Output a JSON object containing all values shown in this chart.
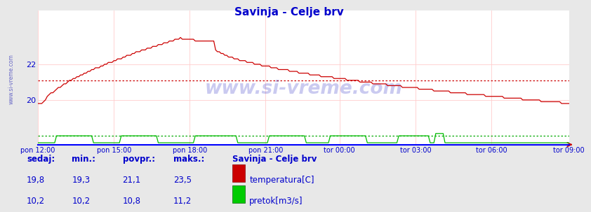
{
  "title": "Savinja - Celje brv",
  "bg_color": "#e8e8e8",
  "plot_bg_color": "#ffffff",
  "grid_color_h": "#ffcccc",
  "grid_color_v": "#ffcccc",
  "title_color": "#0000cc",
  "axis_label_color": "#0000cc",
  "watermark_text": "www.si-vreme.com",
  "watermark_color": "#4444cc",
  "watermark_alpha": 0.28,
  "temp_color": "#cc0000",
  "flow_color": "#00bb00",
  "avg_temp_color": "#cc0000",
  "avg_flow_color": "#00aa00",
  "temp_avg": 21.1,
  "flow_avg_scaled": 0.55,
  "ylim_min": 17.5,
  "ylim_max": 25.0,
  "yticks": [
    20,
    22
  ],
  "x_tick_labels": [
    "pon 12:00",
    "pon 15:00",
    "pon 18:00",
    "pon 21:00",
    "tor 00:00",
    "tor 03:00",
    "tor 06:00",
    "tor 09:00"
  ],
  "x_tick_fracs": [
    0.0,
    0.143,
    0.286,
    0.429,
    0.571,
    0.714,
    0.857,
    1.0
  ],
  "n_points": 288,
  "sidebar_text": "www.si-vreme.com",
  "legend_title": "Savinja - Celje brv",
  "legend_temp_label": "temperatura[C]",
  "legend_flow_label": "pretok[m3/s]",
  "stats_headers": [
    "sedaj:",
    "min.:",
    "povpr.:",
    "maks.:"
  ],
  "stats_temp": [
    "19,8",
    "19,3",
    "21,1",
    "23,5"
  ],
  "stats_flow": [
    "10,2",
    "10,2",
    "10,8",
    "11,2"
  ],
  "stats_color": "#0000cc",
  "bottom_bg": "#e8e8e8",
  "spine_bottom_color": "#0000ff",
  "arrow_color": "#cc0000"
}
